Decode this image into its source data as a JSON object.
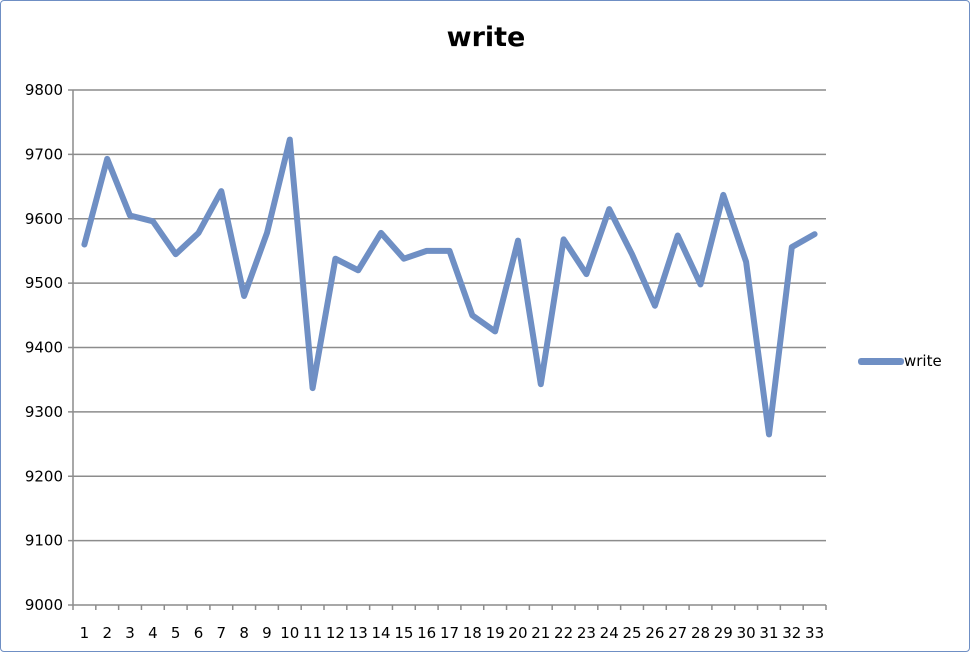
{
  "chart_data": {
    "type": "line",
    "title": "write",
    "xlabel": "",
    "ylabel": "",
    "categories": [
      "1",
      "2",
      "3",
      "4",
      "5",
      "6",
      "7",
      "8",
      "9",
      "10",
      "11",
      "12",
      "13",
      "14",
      "15",
      "16",
      "17",
      "18",
      "19",
      "20",
      "21",
      "22",
      "23",
      "24",
      "25",
      "26",
      "27",
      "28",
      "29",
      "30",
      "31",
      "32",
      "33"
    ],
    "ylim": [
      9000,
      9800
    ],
    "yticks": [
      9000,
      9100,
      9200,
      9300,
      9400,
      9500,
      9600,
      9700,
      9800
    ],
    "grid": true,
    "legend_position": "right",
    "series": [
      {
        "name": "write",
        "color": "#6f8fc4",
        "values": [
          9560,
          9693,
          9605,
          9596,
          9545,
          9578,
          9643,
          9480,
          9578,
          9723,
          9337,
          9538,
          9520,
          9578,
          9538,
          9550,
          9550,
          9450,
          9425,
          9566,
          9343,
          9568,
          9514,
          9615,
          9545,
          9465,
          9574,
          9498,
          9637,
          9533,
          9265,
          9556,
          9576
        ]
      }
    ]
  }
}
